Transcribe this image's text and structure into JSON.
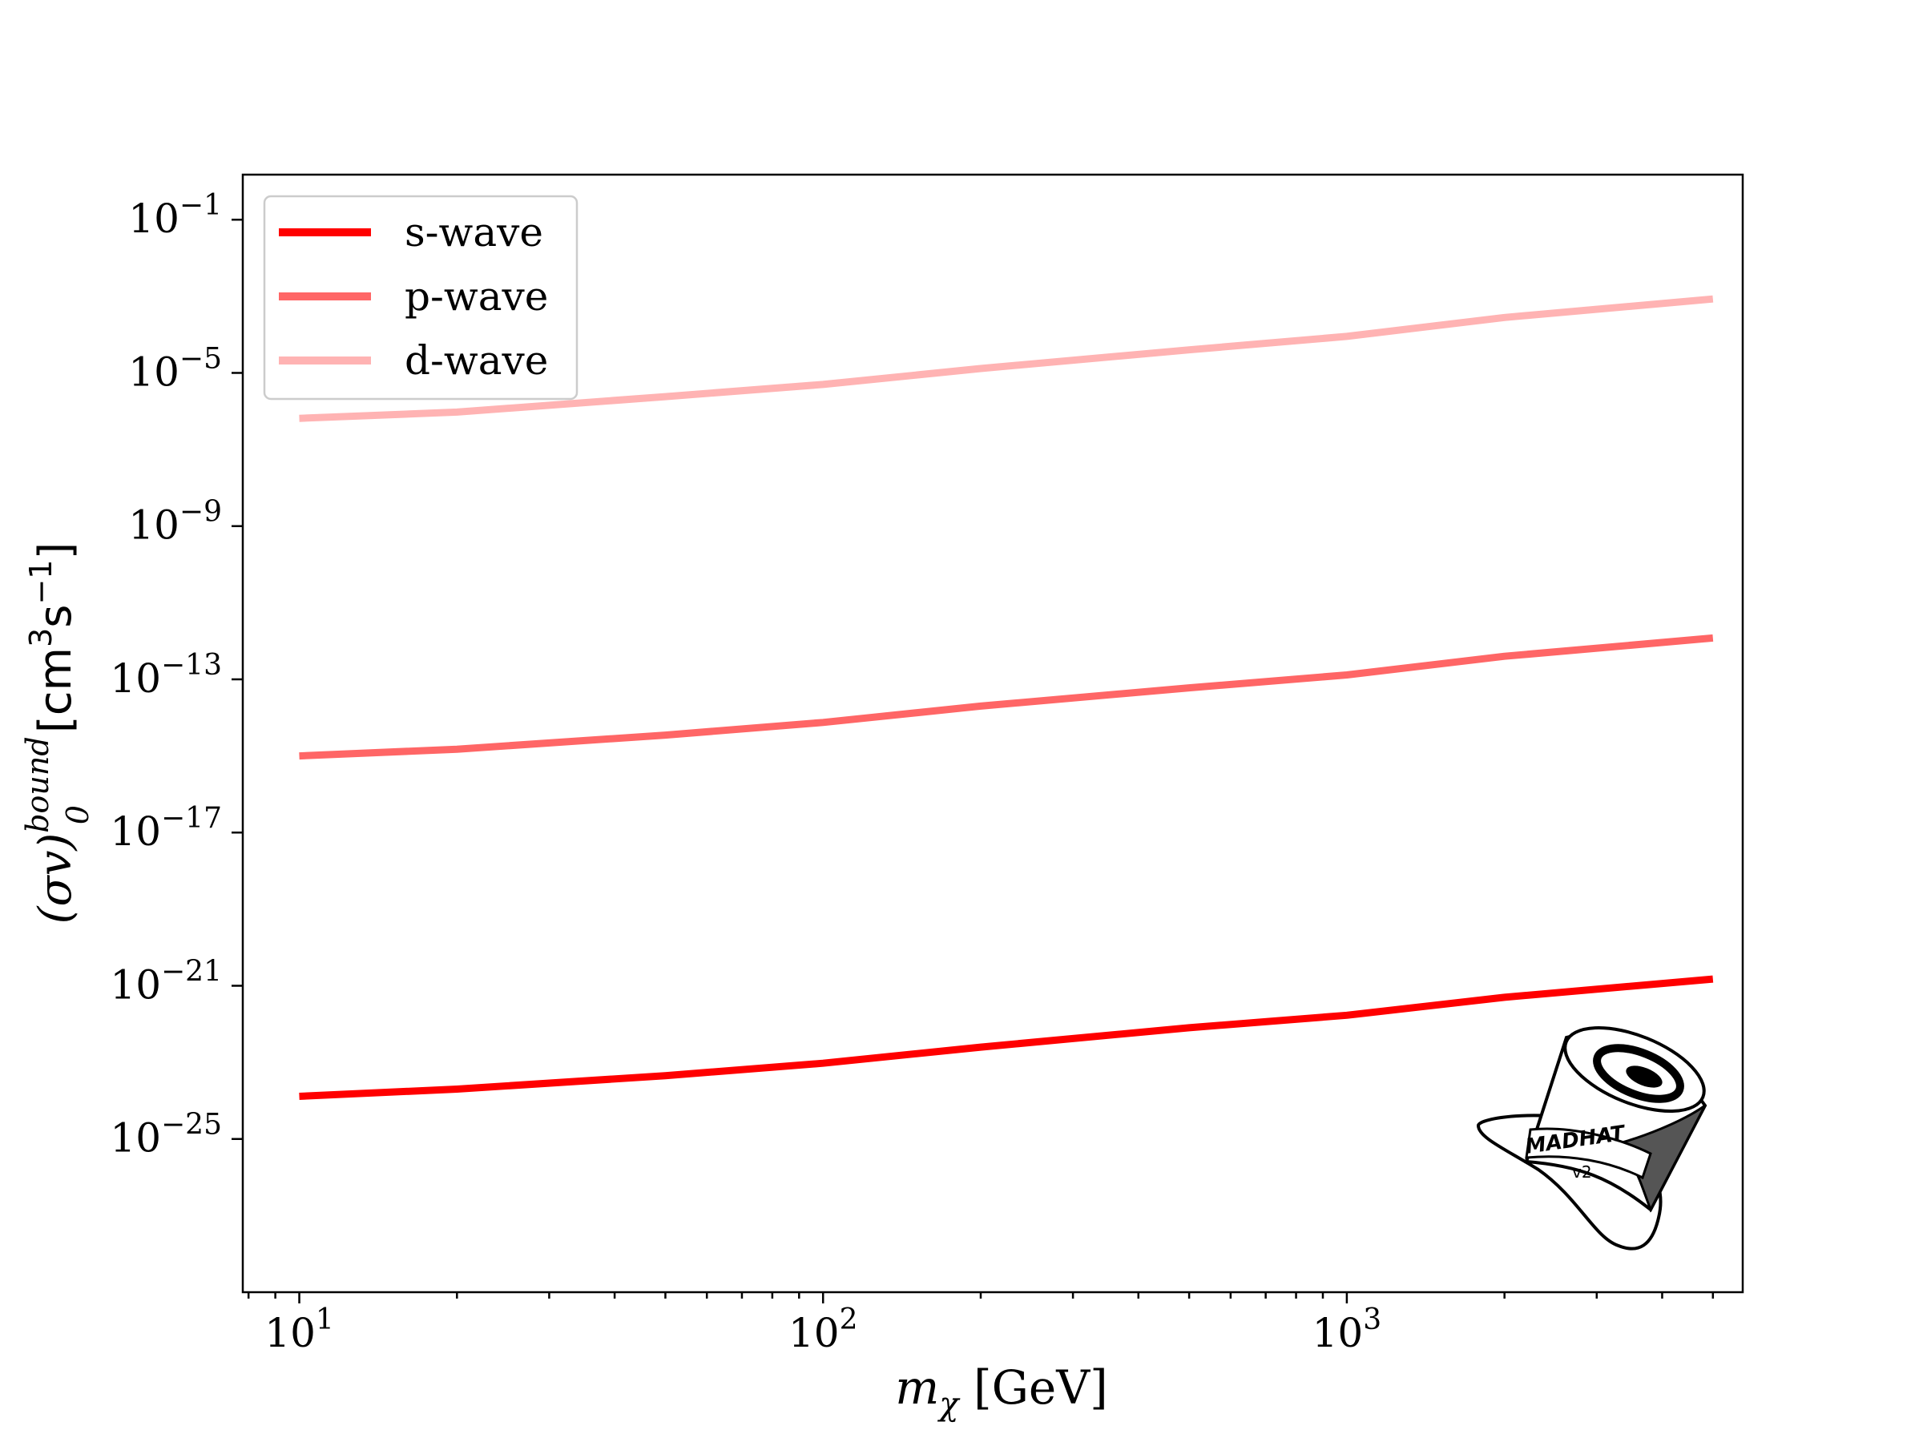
{
  "chart_data": {
    "type": "line",
    "title": "",
    "xlabel": {
      "main": "m",
      "sub": "χ",
      "unit": "[GeV]"
    },
    "ylabel": {
      "main": "(σv)",
      "sub": "0",
      "sup": "bound",
      "unit_a": "[cm",
      "unit_sup_a": "3",
      "unit_b": "s",
      "unit_sup_b": "−1",
      "unit_c": "]"
    },
    "xscale": "log",
    "yscale": "log",
    "xlim": [
      7.8,
      5700
    ],
    "ylim": [
      1e-29,
      1.5
    ],
    "x_ticks": [
      {
        "base": "10",
        "exp": "1",
        "value": 10
      },
      {
        "base": "10",
        "exp": "2",
        "value": 100
      },
      {
        "base": "10",
        "exp": "3",
        "value": 1000
      }
    ],
    "y_ticks": [
      {
        "base": "10",
        "exp": "−1",
        "value": 0.1
      },
      {
        "base": "10",
        "exp": "−5",
        "value": 1e-05
      },
      {
        "base": "10",
        "exp": "−9",
        "value": 1e-09
      },
      {
        "base": "10",
        "exp": "−13",
        "value": 1e-13
      },
      {
        "base": "10",
        "exp": "−17",
        "value": 1e-17
      },
      {
        "base": "10",
        "exp": "−21",
        "value": 1e-21
      },
      {
        "base": "10",
        "exp": "−25",
        "value": 1e-25
      }
    ],
    "legend_position": "top-left",
    "grid": false,
    "series": [
      {
        "name": "s-wave",
        "color": "#ff0000",
        "x": [
          10,
          20,
          50,
          100,
          200,
          500,
          1000,
          2000,
          5000
        ],
        "y": [
          1.3e-24,
          2e-24,
          4.5e-24,
          9.5e-24,
          2.5e-23,
          8e-23,
          1.7e-22,
          5e-22,
          1.5e-21
        ]
      },
      {
        "name": "p-wave",
        "color": "#ff6666",
        "x": [
          10,
          20,
          50,
          100,
          200,
          500,
          1000,
          2000,
          5000
        ],
        "y": [
          1e-15,
          1.5e-15,
          3.5e-15,
          7.5e-15,
          2e-14,
          6e-14,
          1.3e-13,
          4e-13,
          1.2e-12
        ]
      },
      {
        "name": "d-wave",
        "color": "#ffb3b3",
        "x": [
          10,
          20,
          50,
          100,
          200,
          500,
          1000,
          2000,
          5000
        ],
        "y": [
          6.5e-07,
          9.5e-07,
          2.4e-06,
          5e-06,
          1.3e-05,
          4e-05,
          9e-05,
          0.00028,
          0.00085
        ]
      }
    ],
    "logo": {
      "text": "MADHAT",
      "version": "v2"
    }
  }
}
